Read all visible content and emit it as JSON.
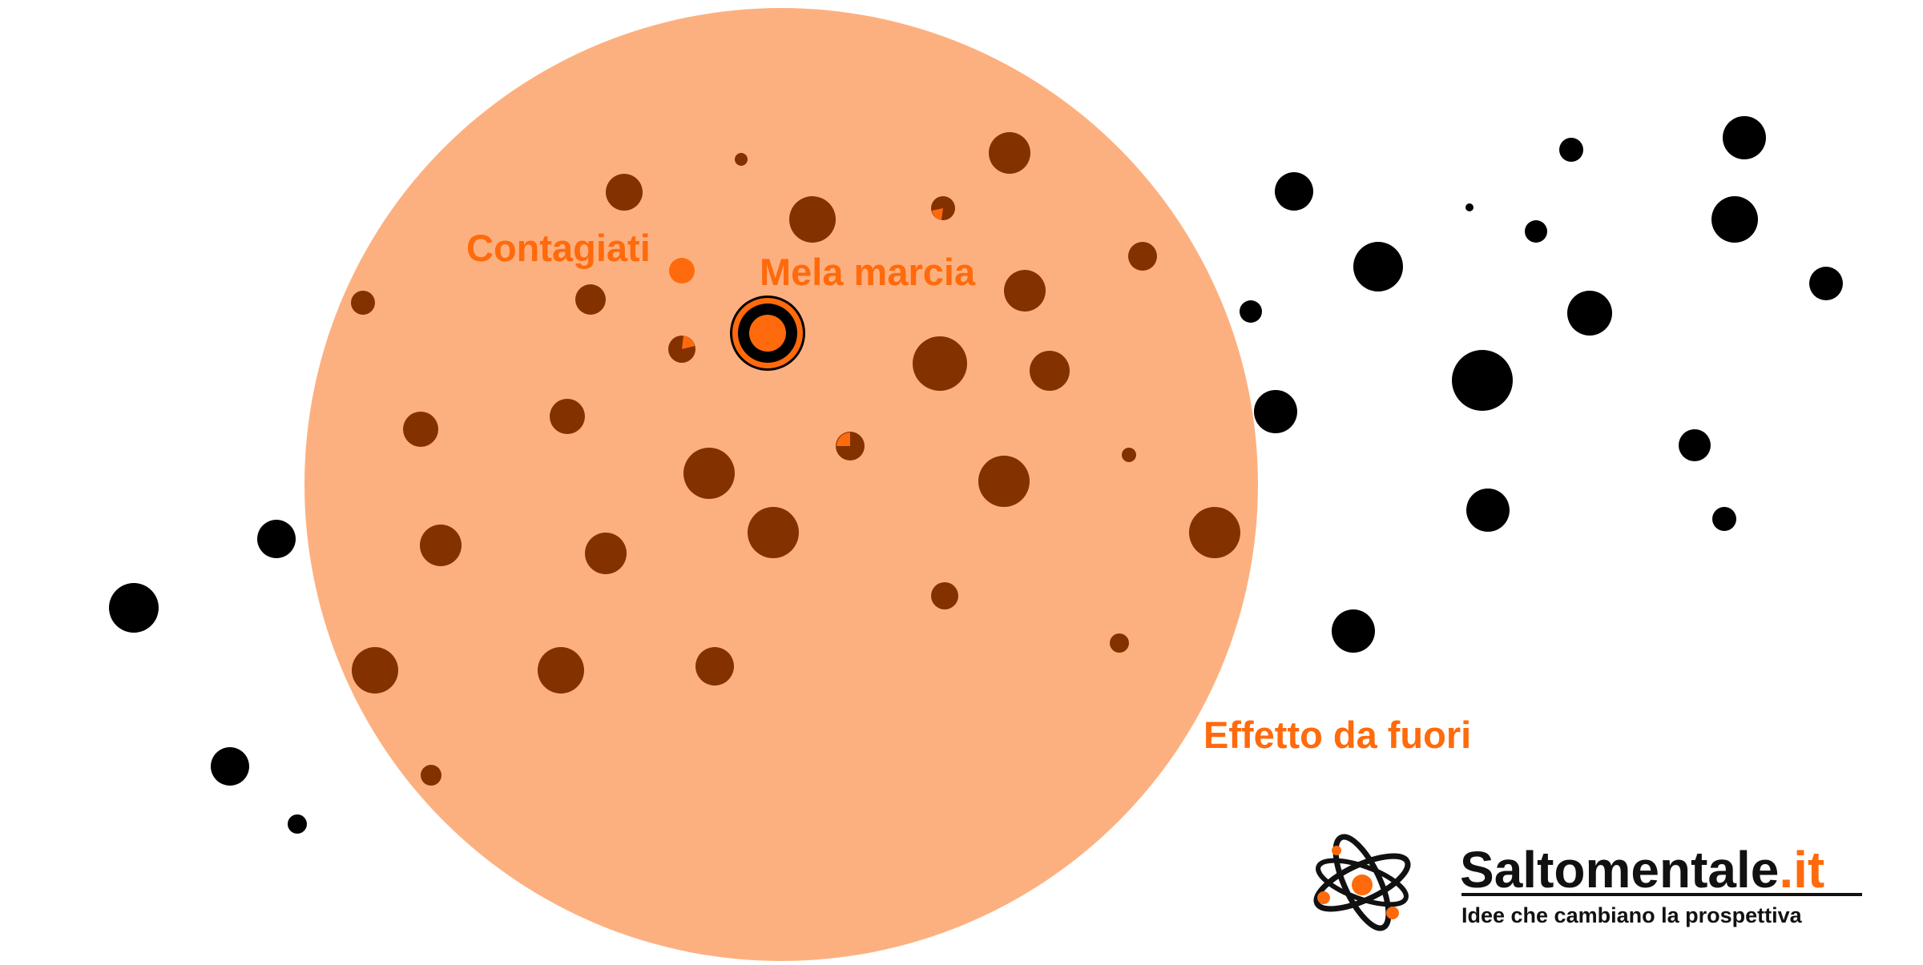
{
  "labels": {
    "infected": "Contagiati",
    "bad_apple": "Mela marcia",
    "outside_effect": "Effetto da fuori"
  },
  "brand": {
    "name_main": "Saltomentale",
    "name_tld": ".it",
    "tagline": "Idee che cambiano la prospettiva",
    "logo_icon": "atom-icon"
  },
  "colors": {
    "influence_zone": "#fdb07f",
    "affected_apple": "#843100",
    "healthy_apple": "#000000",
    "contagion": "#ff6a0c",
    "label_text": "#ff6a0c",
    "brand_text": "#111111"
  }
}
